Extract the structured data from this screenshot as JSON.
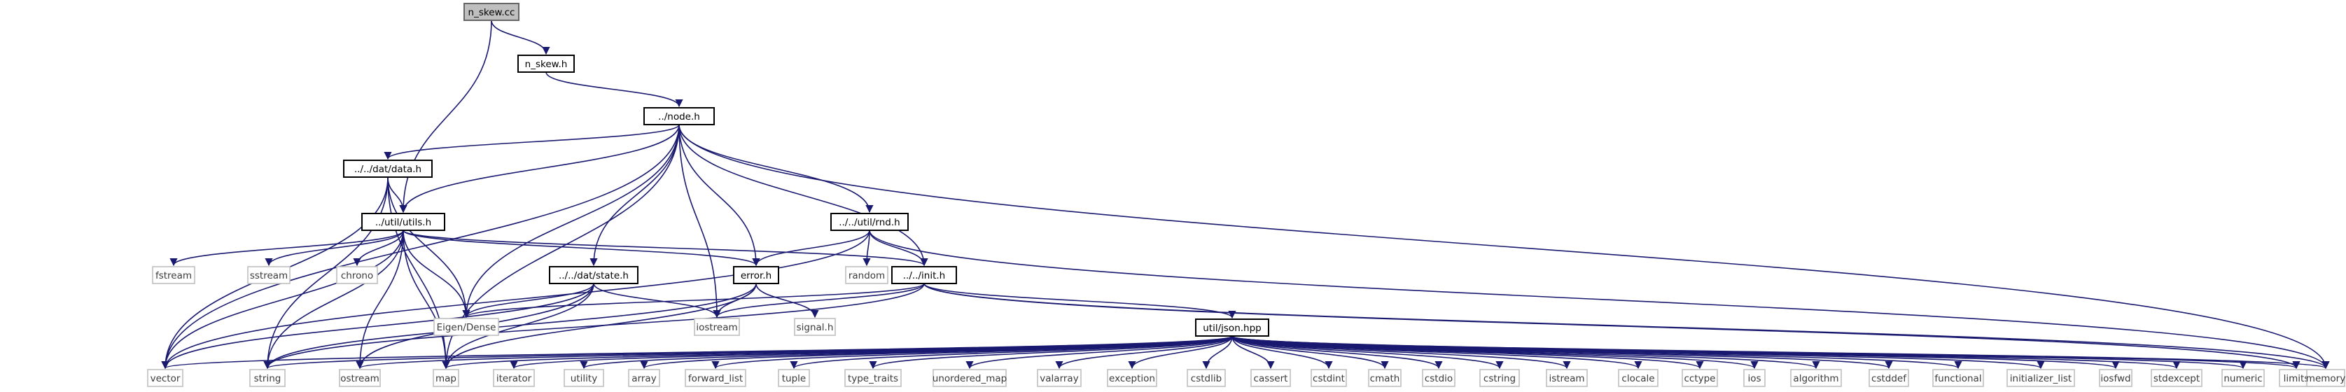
{
  "colors": {
    "edge": "#191970",
    "root_fill": "#bfbfbf",
    "box_border": "#000000",
    "system_border": "#bfbfbf"
  },
  "nodes": [
    {
      "id": "root",
      "label": "n_skew.cc",
      "kind": "root"
    },
    {
      "id": "nskewh",
      "label": "n_skew.h",
      "kind": "local"
    },
    {
      "id": "node",
      "label": "../node.h",
      "kind": "local"
    },
    {
      "id": "data",
      "label": "../../dat/data.h",
      "kind": "local"
    },
    {
      "id": "utils",
      "label": "../util/utils.h",
      "kind": "local"
    },
    {
      "id": "rnd",
      "label": "../../util/rnd.h",
      "kind": "local"
    },
    {
      "id": "state",
      "label": "../../dat/state.h",
      "kind": "local"
    },
    {
      "id": "error",
      "label": "error.h",
      "kind": "local"
    },
    {
      "id": "init",
      "label": "../../init.h",
      "kind": "local"
    },
    {
      "id": "json",
      "label": "util/json.hpp",
      "kind": "local"
    },
    {
      "id": "fstream",
      "label": "fstream",
      "kind": "system"
    },
    {
      "id": "sstream",
      "label": "sstream",
      "kind": "system"
    },
    {
      "id": "chrono",
      "label": "chrono",
      "kind": "system"
    },
    {
      "id": "random",
      "label": "random",
      "kind": "system"
    },
    {
      "id": "eigen",
      "label": "Eigen/Dense",
      "kind": "system"
    },
    {
      "id": "iostream",
      "label": "iostream",
      "kind": "system"
    },
    {
      "id": "signal",
      "label": "signal.h",
      "kind": "system"
    },
    {
      "id": "vector",
      "label": "vector",
      "kind": "system"
    },
    {
      "id": "string",
      "label": "string",
      "kind": "system"
    },
    {
      "id": "ostream",
      "label": "ostream",
      "kind": "system"
    },
    {
      "id": "map",
      "label": "map",
      "kind": "system"
    },
    {
      "id": "iterator",
      "label": "iterator",
      "kind": "system"
    },
    {
      "id": "utility",
      "label": "utility",
      "kind": "system"
    },
    {
      "id": "array",
      "label": "array",
      "kind": "system"
    },
    {
      "id": "forward_list",
      "label": "forward_list",
      "kind": "system"
    },
    {
      "id": "tuple",
      "label": "tuple",
      "kind": "system"
    },
    {
      "id": "type_traits",
      "label": "type_traits",
      "kind": "system"
    },
    {
      "id": "unordered_map",
      "label": "unordered_map",
      "kind": "system"
    },
    {
      "id": "valarray",
      "label": "valarray",
      "kind": "system"
    },
    {
      "id": "exception",
      "label": "exception",
      "kind": "system"
    },
    {
      "id": "cstdlib",
      "label": "cstdlib",
      "kind": "system"
    },
    {
      "id": "cassert",
      "label": "cassert",
      "kind": "system"
    },
    {
      "id": "cstdint",
      "label": "cstdint",
      "kind": "system"
    },
    {
      "id": "cmath",
      "label": "cmath",
      "kind": "system"
    },
    {
      "id": "cstdio",
      "label": "cstdio",
      "kind": "system"
    },
    {
      "id": "cstring",
      "label": "cstring",
      "kind": "system"
    },
    {
      "id": "istream",
      "label": "istream",
      "kind": "system"
    },
    {
      "id": "clocale",
      "label": "clocale",
      "kind": "system"
    },
    {
      "id": "cctype",
      "label": "cctype",
      "kind": "system"
    },
    {
      "id": "ios",
      "label": "ios",
      "kind": "system"
    },
    {
      "id": "algorithm",
      "label": "algorithm",
      "kind": "system"
    },
    {
      "id": "cstddef",
      "label": "cstddef",
      "kind": "system"
    },
    {
      "id": "functional",
      "label": "functional",
      "kind": "system"
    },
    {
      "id": "initializer_list",
      "label": "initializer_list",
      "kind": "system"
    },
    {
      "id": "iosfwd",
      "label": "iosfwd",
      "kind": "system"
    },
    {
      "id": "stdexcept",
      "label": "stdexcept",
      "kind": "system"
    },
    {
      "id": "numeric",
      "label": "numeric",
      "kind": "system"
    },
    {
      "id": "limits",
      "label": "limits",
      "kind": "system"
    },
    {
      "id": "memory",
      "label": "memory",
      "kind": "system"
    }
  ],
  "edges": [
    [
      "root",
      "nskewh"
    ],
    [
      "root",
      "utils"
    ],
    [
      "nskewh",
      "node"
    ],
    [
      "node",
      "data"
    ],
    [
      "node",
      "utils"
    ],
    [
      "node",
      "rnd"
    ],
    [
      "node",
      "state"
    ],
    [
      "node",
      "error"
    ],
    [
      "node",
      "init"
    ],
    [
      "node",
      "eigen"
    ],
    [
      "node",
      "iostream"
    ],
    [
      "node",
      "vector"
    ],
    [
      "node",
      "map"
    ],
    [
      "node",
      "memory"
    ],
    [
      "data",
      "utils"
    ],
    [
      "data",
      "eigen"
    ],
    [
      "data",
      "vector"
    ],
    [
      "data",
      "string"
    ],
    [
      "data",
      "map"
    ],
    [
      "utils",
      "fstream"
    ],
    [
      "utils",
      "sstream"
    ],
    [
      "utils",
      "chrono"
    ],
    [
      "utils",
      "eigen"
    ],
    [
      "utils",
      "error"
    ],
    [
      "utils",
      "init"
    ],
    [
      "utils",
      "vector"
    ],
    [
      "utils",
      "string"
    ],
    [
      "utils",
      "ostream"
    ],
    [
      "utils",
      "map"
    ],
    [
      "rnd",
      "error"
    ],
    [
      "rnd",
      "init"
    ],
    [
      "rnd",
      "random"
    ],
    [
      "rnd",
      "vector"
    ],
    [
      "rnd",
      "memory"
    ],
    [
      "state",
      "eigen"
    ],
    [
      "state",
      "iostream"
    ],
    [
      "state",
      "vector"
    ],
    [
      "state",
      "ostream"
    ],
    [
      "state",
      "map"
    ],
    [
      "error",
      "iostream"
    ],
    [
      "error",
      "signal"
    ],
    [
      "error",
      "string"
    ],
    [
      "error",
      "map"
    ],
    [
      "init",
      "json"
    ],
    [
      "init",
      "eigen"
    ],
    [
      "init",
      "iostream"
    ],
    [
      "init",
      "string"
    ],
    [
      "init",
      "limits"
    ],
    [
      "init",
      "memory"
    ],
    [
      "json",
      "vector"
    ],
    [
      "json",
      "string"
    ],
    [
      "json",
      "ostream"
    ],
    [
      "json",
      "map"
    ],
    [
      "json",
      "iterator"
    ],
    [
      "json",
      "utility"
    ],
    [
      "json",
      "array"
    ],
    [
      "json",
      "forward_list"
    ],
    [
      "json",
      "tuple"
    ],
    [
      "json",
      "type_traits"
    ],
    [
      "json",
      "unordered_map"
    ],
    [
      "json",
      "valarray"
    ],
    [
      "json",
      "exception"
    ],
    [
      "json",
      "cstdlib"
    ],
    [
      "json",
      "cassert"
    ],
    [
      "json",
      "cstdint"
    ],
    [
      "json",
      "cmath"
    ],
    [
      "json",
      "cstdio"
    ],
    [
      "json",
      "cstring"
    ],
    [
      "json",
      "istream"
    ],
    [
      "json",
      "clocale"
    ],
    [
      "json",
      "cctype"
    ],
    [
      "json",
      "ios"
    ],
    [
      "json",
      "algorithm"
    ],
    [
      "json",
      "cstddef"
    ],
    [
      "json",
      "functional"
    ],
    [
      "json",
      "initializer_list"
    ],
    [
      "json",
      "iosfwd"
    ],
    [
      "json",
      "stdexcept"
    ],
    [
      "json",
      "numeric"
    ],
    [
      "json",
      "limits"
    ],
    [
      "json",
      "memory"
    ]
  ]
}
